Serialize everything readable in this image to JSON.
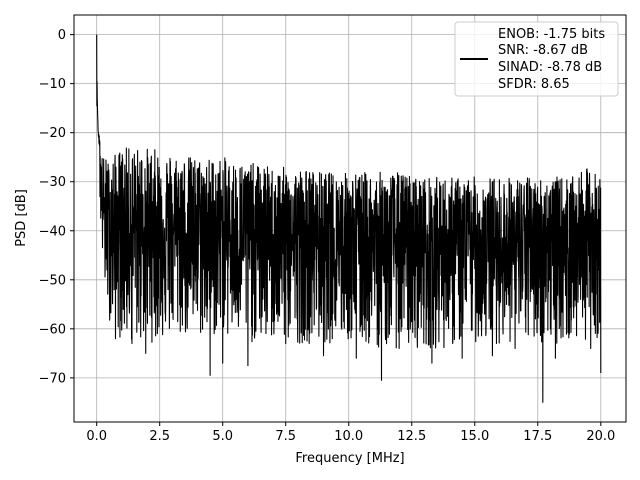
{
  "chart_data": {
    "type": "line",
    "xlabel": "Frequency [MHz]",
    "ylabel": "PSD [dB]",
    "xlim": [
      -0.9,
      21.0
    ],
    "ylim": [
      -79.0,
      4.0
    ],
    "xticks": [
      0.0,
      2.5,
      5.0,
      7.5,
      10.0,
      12.5,
      15.0,
      17.5,
      20.0
    ],
    "xtick_labels": [
      "0.0",
      "2.5",
      "5.0",
      "7.5",
      "10.0",
      "12.5",
      "15.0",
      "17.5",
      "20.0"
    ],
    "yticks": [
      0,
      -10,
      -20,
      -30,
      -40,
      -50,
      -60,
      -70
    ],
    "ytick_labels": [
      "0",
      "−10",
      "−20",
      "−30",
      "−40",
      "−50",
      "−60",
      "−70"
    ],
    "grid": true,
    "legend_position": "top-right",
    "series": [
      {
        "legend_lines": [
          "ENOB: -1.75 bits",
          "SNR: -8.67 dB",
          "SINAD: -8.78 dB",
          "SFDR: 8.65"
        ],
        "color": "#000000",
        "x": [
          0.0,
          0.02,
          0.05,
          0.1,
          0.15,
          0.2,
          0.3,
          0.4,
          0.5,
          0.6,
          0.8,
          1.0,
          1.5,
          2.0,
          3.0,
          4.0,
          5.0,
          6.0,
          7.0,
          8.0,
          9.0,
          10.0,
          11.0,
          12.0,
          13.0,
          14.0,
          15.0,
          16.0,
          17.0,
          17.7,
          18.5,
          19.0,
          19.5,
          20.0
        ],
        "upper": [
          0,
          -12,
          -18,
          -20,
          -22,
          -24,
          -25,
          -25,
          -26,
          -25,
          -24,
          -23,
          -23,
          -23,
          -24,
          -25,
          -25,
          -26,
          -27,
          -27,
          -28,
          -28,
          -28,
          -28,
          -29,
          -29,
          -29,
          -29,
          -29,
          -29,
          -29,
          -29,
          -27,
          -29
        ],
        "lower": [
          0,
          -14,
          -22,
          -30,
          -38,
          -44,
          -52,
          -56,
          -58,
          -60,
          -62,
          -62,
          -63,
          -63,
          -62,
          -62,
          -62,
          -63,
          -63,
          -63,
          -63,
          -63,
          -64,
          -64,
          -64,
          -64,
          -63,
          -63,
          -63,
          -63,
          -63,
          -63,
          -62,
          -62
        ],
        "dips": [
          [
            0.75,
            -62
          ],
          [
            1.4,
            -63
          ],
          [
            1.95,
            -65
          ],
          [
            4.5,
            -69.5
          ],
          [
            5.0,
            -67
          ],
          [
            6.0,
            -67.5
          ],
          [
            7.5,
            -63
          ],
          [
            9.0,
            -65.5
          ],
          [
            10.3,
            -66
          ],
          [
            11.3,
            -70.5
          ],
          [
            12.0,
            -64
          ],
          [
            13.3,
            -67
          ],
          [
            14.5,
            -66
          ],
          [
            15.7,
            -65.5
          ],
          [
            16.6,
            -64
          ],
          [
            17.7,
            -75
          ],
          [
            18.2,
            -66
          ],
          [
            19.6,
            -64
          ],
          [
            20.0,
            -69
          ]
        ]
      }
    ]
  }
}
